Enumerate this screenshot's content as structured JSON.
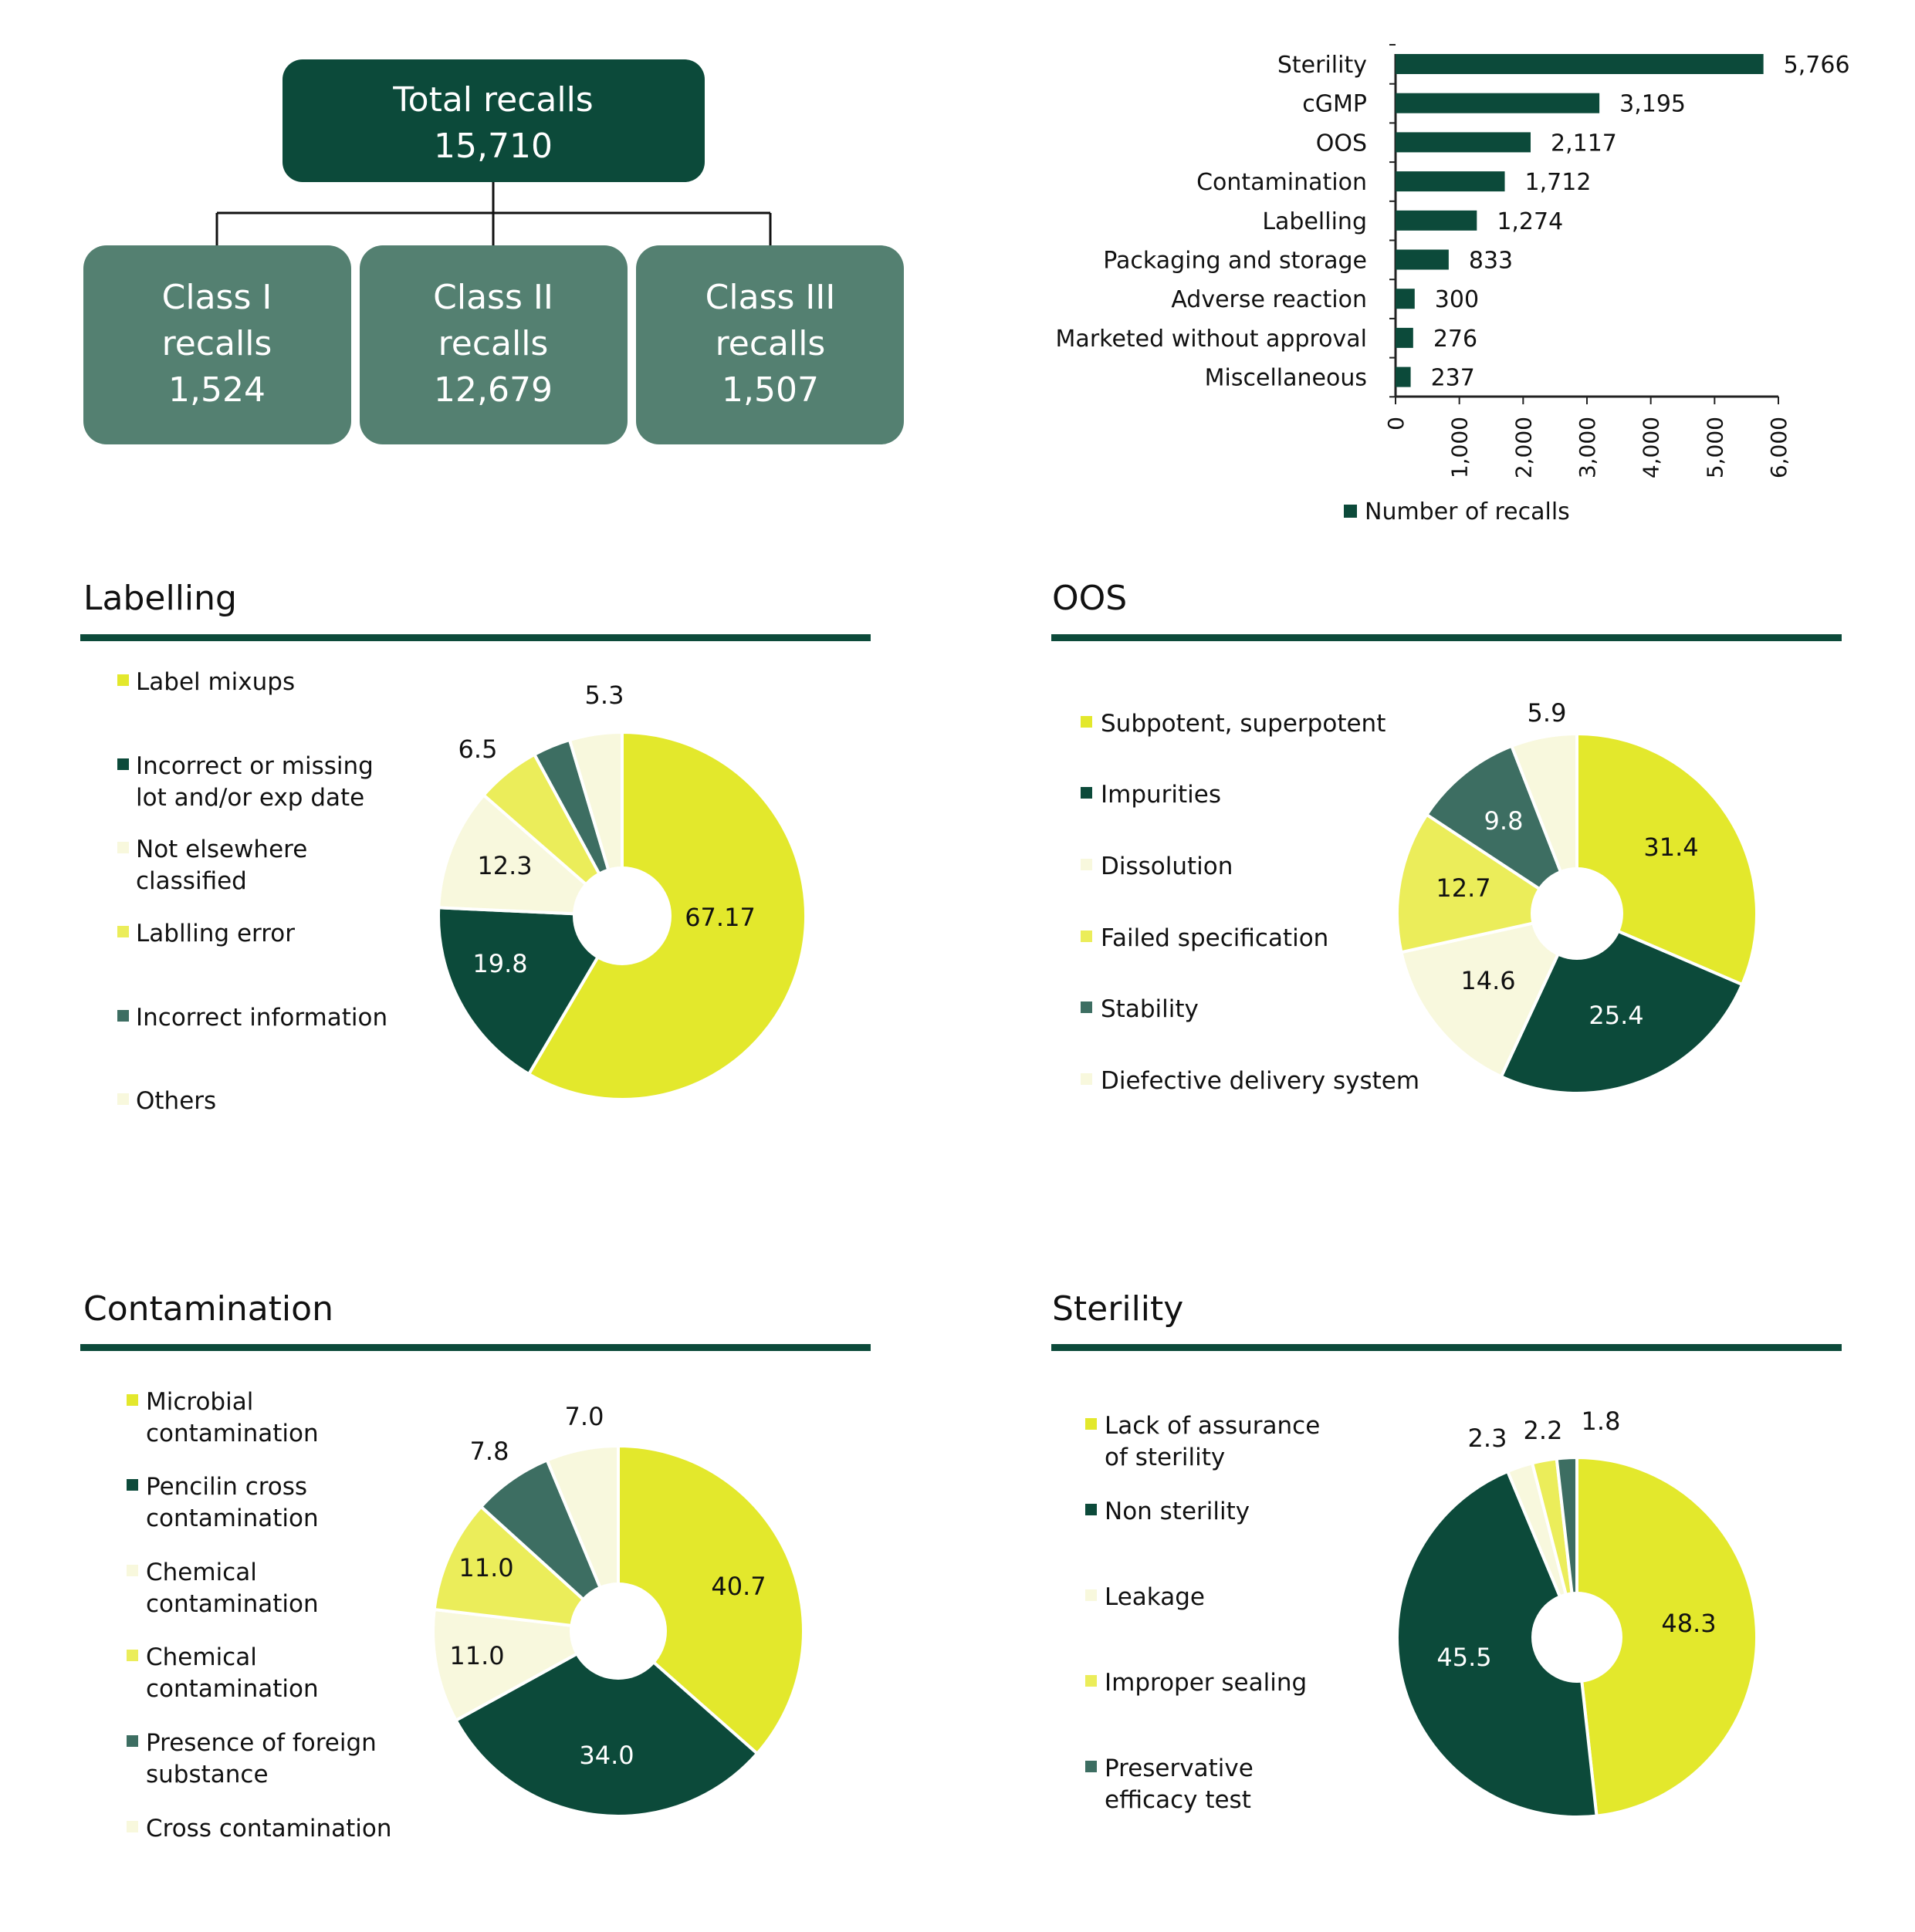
{
  "colors": {
    "dark_green": "#0c4a3a",
    "mid_green": "#548071",
    "teal": "#3d6e62",
    "yellow": "#e3e82c",
    "light_yellow": "#ebed5a",
    "cream": "#f8f8dd"
  },
  "org_chart": {
    "total": {
      "line1": "Total recalls",
      "line2": "15,710"
    },
    "classes": [
      {
        "line1": "Class I",
        "line2": "recalls",
        "line3": "1,524"
      },
      {
        "line1": "Class II",
        "line2": "recalls",
        "line3": "12,679"
      },
      {
        "line1": "Class III",
        "line2": "recalls",
        "line3": "1,507"
      }
    ]
  },
  "chart_data": [
    {
      "id": "reasons",
      "type": "bar",
      "orientation": "horizontal",
      "categories": [
        "Sterility",
        "cGMP",
        "OOS",
        "Contamination",
        "Labelling",
        "Packaging and storage",
        "Adverse reaction",
        "Marketed without approval",
        "Miscellaneous"
      ],
      "values": [
        5766,
        3195,
        2117,
        1712,
        1274,
        833,
        300,
        276,
        237
      ],
      "value_labels": [
        "5,766",
        "3,195",
        "2,117",
        "1,712",
        "1,274",
        "833",
        "300",
        "276",
        "237"
      ],
      "xlim": [
        0,
        6000
      ],
      "ticks": [
        0,
        1000,
        2000,
        3000,
        4000,
        5000,
        6000
      ],
      "tick_labels": [
        "0",
        "1,000",
        "2,000",
        "3,000",
        "4,000",
        "5,000",
        "6,000"
      ],
      "legend": "Number of recalls",
      "legend_position": "bottom",
      "color": "#0c4a3a"
    },
    {
      "id": "labelling",
      "type": "pie",
      "title": "Labelling",
      "labels": [
        "Label mixups",
        "Incorrect or missing lot and/or exp date",
        "Not elsewhere classified",
        "Lablling error",
        "Incorrect information",
        "Others"
      ],
      "legend_lines": [
        [
          "Label mixups"
        ],
        [
          "Incorrect or missing",
          "lot and/or exp date"
        ],
        [
          "Not elsewhere",
          "classified"
        ],
        [
          "Lablling error"
        ],
        [
          "Incorrect information"
        ],
        [
          "Others"
        ]
      ],
      "values": [
        67.17,
        19.8,
        12.3,
        6.5,
        3.8,
        5.3
      ],
      "value_labels": [
        "67.17",
        "19.8",
        "12.3",
        "6.5",
        "3.8",
        "5.3"
      ],
      "colors": [
        "#e3e82c",
        "#0c4a3a",
        "#f8f8dd",
        "#ebed5a",
        "#3d6e62",
        "#f8f8dd"
      ]
    },
    {
      "id": "oos",
      "type": "pie",
      "title": "OOS",
      "labels": [
        "Subpotent, superpotent",
        "Impurities",
        "Dissolution",
        "Failed specification",
        "Stability",
        "Diefective delivery system"
      ],
      "legend_lines": [
        [
          "Subpotent, superpotent"
        ],
        [
          "Impurities"
        ],
        [
          "Dissolution"
        ],
        [
          "Failed specification"
        ],
        [
          "Stability"
        ],
        [
          "Diefective delivery system"
        ]
      ],
      "values": [
        31.4,
        25.4,
        14.6,
        12.7,
        9.8,
        5.9
      ],
      "value_labels": [
        "31.4",
        "25.4",
        "14.6",
        "12.7",
        "9.8",
        "5.9"
      ],
      "colors": [
        "#e3e82c",
        "#0c4a3a",
        "#f8f8dd",
        "#ebed5a",
        "#3d6e62",
        "#f8f8dd"
      ]
    },
    {
      "id": "contamination",
      "type": "pie",
      "title": "Contamination",
      "labels": [
        "Microbial contamination",
        "Pencilin cross contamination",
        "Chemical contamination",
        "Chemical contamination",
        "Presence of foreign substance",
        "Cross contamination"
      ],
      "legend_lines": [
        [
          "Microbial",
          "contamination"
        ],
        [
          "Pencilin cross",
          "contamination"
        ],
        [
          "Chemical",
          "contamination"
        ],
        [
          "Chemical",
          "contamination"
        ],
        [
          "Presence of foreign",
          "substance"
        ],
        [
          "Cross contamination"
        ]
      ],
      "values": [
        40.7,
        34.0,
        11.0,
        11.0,
        7.8,
        7.0
      ],
      "value_labels": [
        "40.7",
        "34.0",
        "11.0",
        "11.0",
        "7.8",
        "7.0"
      ],
      "colors": [
        "#e3e82c",
        "#0c4a3a",
        "#f8f8dd",
        "#ebed5a",
        "#3d6e62",
        "#f8f8dd"
      ]
    },
    {
      "id": "sterility",
      "type": "pie",
      "title": "Sterility",
      "labels": [
        "Lack of assurance of sterility",
        "Non sterility",
        "Leakage",
        "Improper sealing",
        "Preservative efficacy test"
      ],
      "legend_lines": [
        [
          "Lack of assurance",
          "of sterility"
        ],
        [
          "Non sterility"
        ],
        [
          "Leakage"
        ],
        [
          "Improper sealing"
        ],
        [
          "Preservative",
          "efficacy test"
        ]
      ],
      "values": [
        48.3,
        45.5,
        2.3,
        2.2,
        1.8
      ],
      "value_labels": [
        "48.3",
        "45.5",
        "2.3",
        "2.2",
        "1.8"
      ],
      "colors": [
        "#e3e82c",
        "#0c4a3a",
        "#f8f8dd",
        "#ebed5a",
        "#3d6e62"
      ]
    }
  ]
}
